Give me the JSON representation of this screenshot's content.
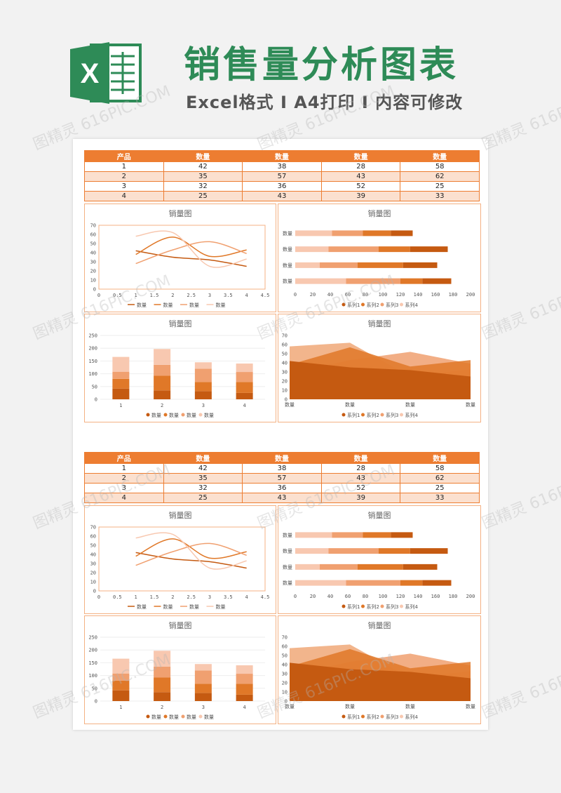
{
  "header": {
    "title": "销售量分析图表",
    "subtitle": "Excel格式 I A4打印 I 内容可修改",
    "logo_letter": "X"
  },
  "table": {
    "headers": [
      "产品",
      "数量",
      "数量",
      "数量",
      "数量"
    ],
    "rows": [
      [
        "1",
        "42",
        "38",
        "28",
        "58"
      ],
      [
        "2",
        "35",
        "57",
        "43",
        "62"
      ],
      [
        "3",
        "32",
        "36",
        "52",
        "25"
      ],
      [
        "4",
        "25",
        "43",
        "39",
        "33"
      ]
    ]
  },
  "watermark": "图精灵 616PIC.COM",
  "colors": {
    "c1": "#c55a11",
    "c2": "#e07828",
    "c3": "#f0a070",
    "c4": "#f8c8b0",
    "header": "#2e8b57",
    "accent": "#ed7d31"
  },
  "chart_data": [
    {
      "type": "line",
      "title": "销量图",
      "x": [
        1,
        2,
        3,
        4
      ],
      "xlim": [
        0,
        4.5
      ],
      "ylim": [
        0,
        70
      ],
      "xticks": [
        "0",
        "0.5",
        "1",
        "1.5",
        "2",
        "2.5",
        "3",
        "3.5",
        "4",
        "4.5"
      ],
      "yticks": [
        "0",
        "10",
        "20",
        "30",
        "40",
        "50",
        "60",
        "70"
      ],
      "series": [
        {
          "name": "数量",
          "values": [
            42,
            35,
            32,
            25
          ]
        },
        {
          "name": "数量",
          "values": [
            38,
            57,
            36,
            43
          ]
        },
        {
          "name": "数量",
          "values": [
            28,
            43,
            52,
            39
          ]
        },
        {
          "name": "数量",
          "values": [
            58,
            62,
            25,
            33
          ]
        }
      ]
    },
    {
      "type": "bar",
      "title": "销量图",
      "orientation": "horizontal",
      "stacked": true,
      "categories": [
        "数量",
        "数量",
        "数量",
        "数量"
      ],
      "xlim": [
        0,
        200
      ],
      "xticks": [
        "0",
        "20",
        "40",
        "60",
        "80",
        "100",
        "120",
        "140",
        "160",
        "180",
        "200"
      ],
      "series": [
        {
          "name": "系列1",
          "values": [
            42,
            38,
            28,
            58
          ]
        },
        {
          "name": "系列2",
          "values": [
            35,
            57,
            43,
            62
          ]
        },
        {
          "name": "系列3",
          "values": [
            32,
            36,
            52,
            25
          ]
        },
        {
          "name": "系列4",
          "values": [
            25,
            43,
            39,
            33
          ]
        }
      ]
    },
    {
      "type": "bar",
      "title": "销量图",
      "stacked": true,
      "categories": [
        "1",
        "2",
        "3",
        "4"
      ],
      "ylim": [
        0,
        250
      ],
      "yticks": [
        "0",
        "50",
        "100",
        "150",
        "200",
        "250"
      ],
      "series": [
        {
          "name": "数量",
          "values": [
            42,
            35,
            32,
            25
          ]
        },
        {
          "name": "数量",
          "values": [
            38,
            57,
            36,
            43
          ]
        },
        {
          "name": "数量",
          "values": [
            28,
            43,
            52,
            39
          ]
        },
        {
          "name": "数量",
          "values": [
            58,
            62,
            25,
            33
          ]
        }
      ]
    },
    {
      "type": "area",
      "title": "销量图",
      "categories": [
        "数量",
        "数量",
        "数量",
        "数量"
      ],
      "ylim": [
        0,
        70
      ],
      "yticks": [
        "0",
        "10",
        "20",
        "30",
        "40",
        "50",
        "60",
        "70"
      ],
      "series": [
        {
          "name": "系列1",
          "values": [
            42,
            35,
            32,
            25
          ]
        },
        {
          "name": "系列2",
          "values": [
            38,
            57,
            36,
            43
          ]
        },
        {
          "name": "系列3",
          "values": [
            28,
            43,
            52,
            39
          ]
        },
        {
          "name": "系列4",
          "values": [
            58,
            62,
            25,
            33
          ]
        }
      ]
    }
  ]
}
